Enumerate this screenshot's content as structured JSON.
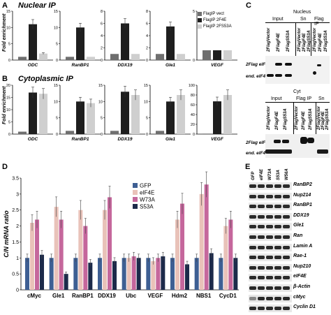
{
  "panels": {
    "A": {
      "letter": "A",
      "title": "Nuclear IP",
      "ylabel": "Fold enrichment"
    },
    "B": {
      "letter": "B",
      "title": "Cytoplasmic IP",
      "ylabel": "Fold enrichment"
    },
    "C": {
      "letter": "C"
    },
    "D": {
      "letter": "D",
      "ylabel": "C/N mRNA ratio"
    },
    "E": {
      "letter": "E"
    }
  },
  "colors": {
    "vect": "#6f6f6f",
    "f4e": "#1e1e1e",
    "s53a": "#cfcfcf",
    "gfp": "#3e5f93",
    "eif4e": "#e9c2b9",
    "w73a": "#c5679c",
    "d_s53a": "#1c2a4a"
  },
  "chart_data": [
    {
      "type": "bar",
      "panel": "A",
      "title": "ODC",
      "categories": [
        "ODC"
      ],
      "ylim": [
        0,
        15
      ],
      "yticks": [
        0,
        5,
        10,
        15
      ],
      "series": [
        {
          "name": "FlagIP vect",
          "values": [
            1
          ]
        },
        {
          "name": "FlagIP 2F4E",
          "values": [
            11
          ]
        },
        {
          "name": "FlagIP 2FS53A",
          "values": [
            2
          ]
        }
      ]
    },
    {
      "type": "bar",
      "panel": "A",
      "title": "RanBP1",
      "categories": [
        "RanBP1"
      ],
      "ylim": [
        0,
        15
      ],
      "yticks": [
        0,
        5,
        10,
        15
      ],
      "series": [
        {
          "name": "FlagIP vect",
          "values": [
            1
          ]
        },
        {
          "name": "FlagIP 2F4E",
          "values": [
            10
          ]
        },
        {
          "name": "FlagIP 2FS53A",
          "values": [
            1
          ]
        }
      ]
    },
    {
      "type": "bar",
      "panel": "A",
      "title": "DDX19",
      "categories": [
        "DDX19"
      ],
      "ylim": [
        0,
        8
      ],
      "yticks": [
        0,
        2,
        4,
        6,
        8
      ],
      "series": [
        {
          "name": "FlagIP vect",
          "values": [
            1
          ]
        },
        {
          "name": "FlagIP 2F4E",
          "values": [
            6
          ]
        },
        {
          "name": "FlagIP 2FS53A",
          "values": [
            1
          ]
        }
      ]
    },
    {
      "type": "bar",
      "panel": "A",
      "title": "Gle1",
      "categories": [
        "Gle1"
      ],
      "ylim": [
        0,
        8
      ],
      "yticks": [
        0,
        2,
        4,
        6,
        8
      ],
      "series": [
        {
          "name": "FlagIP vect",
          "values": [
            1
          ]
        },
        {
          "name": "FlagIP 2F4E",
          "values": [
            5.5
          ]
        },
        {
          "name": "FlagIP 2FS53A",
          "values": [
            1
          ]
        }
      ]
    },
    {
      "type": "bar",
      "panel": "A",
      "title": "VEGF",
      "categories": [
        "VEGF"
      ],
      "ylim": [
        0,
        5
      ],
      "yticks": [
        0,
        5
      ],
      "series": [
        {
          "name": "FlagIP vect",
          "values": [
            1
          ]
        },
        {
          "name": "FlagIP 2F4E",
          "values": [
            1
          ]
        },
        {
          "name": "FlagIP 2FS53A",
          "values": [
            1
          ]
        }
      ]
    },
    {
      "type": "bar",
      "panel": "B",
      "title": "ODC",
      "categories": [
        "ODC"
      ],
      "ylim": [
        0,
        20
      ],
      "yticks": [
        0,
        5,
        10,
        15,
        20
      ],
      "series": [
        {
          "name": "FlagIP vect",
          "values": [
            1
          ]
        },
        {
          "name": "FlagIP 2F4E",
          "values": [
            17
          ]
        },
        {
          "name": "FlagIP 2FS53A",
          "values": [
            16.5
          ]
        }
      ]
    },
    {
      "type": "bar",
      "panel": "B",
      "title": "RanBP1",
      "categories": [
        "RanBP1"
      ],
      "ylim": [
        0,
        15
      ],
      "yticks": [
        0,
        5,
        10,
        15
      ],
      "series": [
        {
          "name": "FlagIP vect",
          "values": [
            1
          ]
        },
        {
          "name": "FlagIP 2F4E",
          "values": [
            10
          ]
        },
        {
          "name": "FlagIP 2FS53A",
          "values": [
            9.5
          ]
        }
      ]
    },
    {
      "type": "bar",
      "panel": "B",
      "title": "DDX19",
      "categories": [
        "DDX19"
      ],
      "ylim": [
        0,
        15
      ],
      "yticks": [
        0,
        5,
        10,
        15
      ],
      "series": [
        {
          "name": "FlagIP vect",
          "values": [
            1
          ]
        },
        {
          "name": "FlagIP 2F4E",
          "values": [
            13
          ]
        },
        {
          "name": "FlagIP 2FS53A",
          "values": [
            12
          ]
        }
      ]
    },
    {
      "type": "bar",
      "panel": "B",
      "title": "Gle1",
      "categories": [
        "Gle1"
      ],
      "ylim": [
        0,
        15
      ],
      "yticks": [
        0,
        5,
        10,
        15
      ],
      "series": [
        {
          "name": "FlagIP vect",
          "values": [
            1
          ]
        },
        {
          "name": "FlagIP 2F4E",
          "values": [
            10
          ]
        },
        {
          "name": "FlagIP 2FS53A",
          "values": [
            12
          ]
        }
      ]
    },
    {
      "type": "bar",
      "panel": "B",
      "title": "VEGF",
      "categories": [
        "VEGF"
      ],
      "ylim": [
        0,
        100
      ],
      "yticks": [
        0,
        20,
        40,
        60,
        80,
        100
      ],
      "series": [
        {
          "name": "FlagIP vect",
          "values": [
            1
          ]
        },
        {
          "name": "FlagIP 2F4E",
          "values": [
            67
          ]
        },
        {
          "name": "FlagIP 2FS53A",
          "values": [
            80
          ]
        }
      ]
    },
    {
      "type": "bar",
      "panel": "D",
      "ylabel": "C/N mRNA ratio",
      "ylim": [
        0,
        3.5
      ],
      "yticks": [
        0,
        0.5,
        1,
        1.5,
        2,
        2.5,
        3,
        3.5
      ],
      "categories": [
        "cMyc",
        "Gle1",
        "RanBP1",
        "DDX19",
        "Ubc",
        "VEGF",
        "Hdm2",
        "NBS1",
        "CycD1"
      ],
      "series": [
        {
          "name": "GFP",
          "values": [
            1.0,
            1.0,
            1.0,
            1.0,
            1.0,
            1.0,
            1.0,
            1.0,
            1.0
          ]
        },
        {
          "name": "eIF4E",
          "values": [
            2.1,
            2.6,
            2.5,
            2.5,
            1.0,
            0.9,
            2.2,
            3.0,
            2.0
          ]
        },
        {
          "name": "W73A",
          "values": [
            2.2,
            2.2,
            2.0,
            2.9,
            1.05,
            1.0,
            2.7,
            3.3,
            2.2
          ]
        },
        {
          "name": "S53A",
          "values": [
            1.1,
            0.5,
            0.85,
            0.9,
            1.0,
            1.05,
            0.8,
            1.15,
            1.0
          ]
        }
      ]
    }
  ],
  "legend_A": [
    "FlagIP vect",
    "FlagIP 2F4E",
    "FlagIP 2FS53A"
  ],
  "blotC1": {
    "title_left": "Input",
    "title_mid": "Sn",
    "title_right": "Flag IP",
    "header": "Nucleus",
    "lanes": [
      "2FlagVector",
      "2FlagF4E",
      "2FlagS53A",
      "2FlagVector",
      "2FlagF4E",
      "2FlagS53A",
      "2FlagVector",
      "2FlagF4E",
      "2FlagS53A"
    ],
    "rows": [
      "2Flag eIF4E",
      "end. eIF4E"
    ]
  },
  "blotC2": {
    "title_left": "Input",
    "title_mid": "Flag IP",
    "title_right": "Sn",
    "header": "Cyt",
    "lanes": [
      "2FlagVector",
      "2FlagF4E",
      "2FlagS53A",
      "2FlagVector",
      "2FlagF4E",
      "2FlagS53A",
      "2FlagVector",
      "2FlagF4E",
      "2FlagS53A"
    ],
    "rows": [
      "2Flag eIF4E",
      "end. eIF4E"
    ]
  },
  "blotE": {
    "lanes": [
      "GFP",
      "eIF4E",
      "W73A",
      "S53A",
      "W56A"
    ],
    "rows": [
      "RanBP2",
      "Nup214",
      "RanBP1",
      "DDX19",
      "Gle1",
      "Ran",
      "Lamin A",
      "Rae-1",
      "Nup210",
      "eIF4E",
      "β-Actin",
      "cMyc",
      "Cyclin D1"
    ]
  }
}
